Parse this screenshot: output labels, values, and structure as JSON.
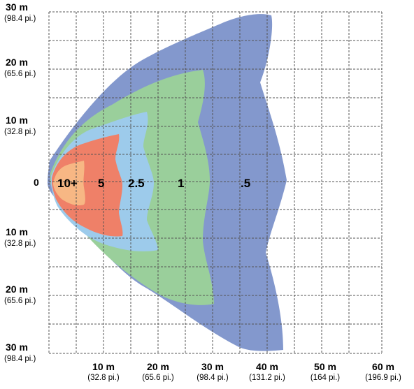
{
  "colors": {
    "zone_0_5": "#8398cd",
    "zone_1": "#9acf9b",
    "zone_2_5": "#9dcbeb",
    "zone_5": "#ef8068",
    "zone_10_plus": "#f7b784",
    "grid": "#555555",
    "background": "#ffffff"
  },
  "y_axis": {
    "labels": [
      {
        "main": "30 m",
        "sub": "(98.4 pi.)"
      },
      {
        "main": "20 m",
        "sub": "(65.6 pi.)"
      },
      {
        "main": "10 m",
        "sub": "(32.8 pi.)"
      },
      {
        "main": "0",
        "sub": ""
      },
      {
        "main": "10 m",
        "sub": "(32.8 pi.)"
      },
      {
        "main": "20 m",
        "sub": "(65.6 pi.)"
      },
      {
        "main": "30 m",
        "sub": "(98.4 pi.)"
      }
    ]
  },
  "x_axis": {
    "labels": [
      {
        "main": "10 m",
        "sub": "(32.8 pi.)"
      },
      {
        "main": "20 m",
        "sub": "(65.6 pi.)"
      },
      {
        "main": "30 m",
        "sub": "(98.4 pi.)"
      },
      {
        "main": "40 m",
        "sub": "(131.2 pi.)"
      },
      {
        "main": "50 m",
        "sub": "(164 pi.)"
      },
      {
        "main": "60 m",
        "sub": "(196.9 pi.)"
      }
    ]
  },
  "zones": [
    {
      "label": "10+"
    },
    {
      "label": "5"
    },
    {
      "label": "2.5"
    },
    {
      "label": "1"
    },
    {
      "label": ".5"
    }
  ]
}
